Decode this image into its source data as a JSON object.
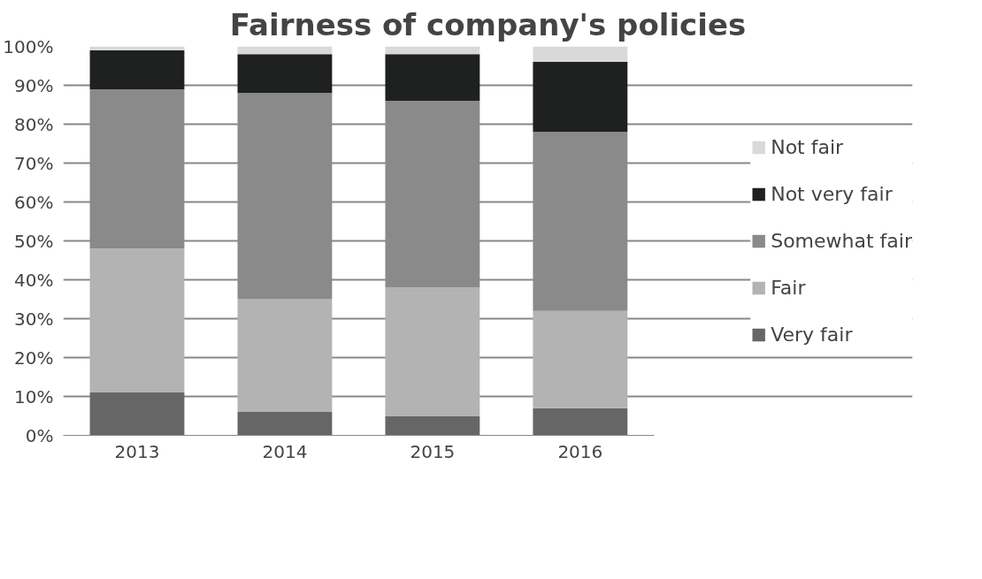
{
  "chart_data": {
    "type": "bar",
    "title": "Fairness of company's policies",
    "stacked": true,
    "categories": [
      "2013",
      "2014",
      "2015",
      "2016"
    ],
    "series": [
      {
        "name": "Very fair",
        "color": "#666666",
        "values": [
          11,
          6,
          5,
          7
        ]
      },
      {
        "name": "Fair",
        "color": "#b3b3b3",
        "values": [
          37,
          29,
          33,
          25
        ]
      },
      {
        "name": "Somewhat fair",
        "color": "#8a8a8a",
        "values": [
          41,
          53,
          48,
          46
        ]
      },
      {
        "name": "Not very fair",
        "color": "#1f2020",
        "values": [
          10,
          10,
          12,
          18
        ]
      },
      {
        "name": "Not fair",
        "color": "#d9d9d9",
        "values": [
          1,
          2,
          2,
          4
        ]
      }
    ],
    "ylim": [
      0,
      100
    ],
    "yticks": [
      {
        "value": 0,
        "label": "0%"
      },
      {
        "value": 10,
        "label": "10%"
      },
      {
        "value": 20,
        "label": "20%"
      },
      {
        "value": 30,
        "label": "30%"
      },
      {
        "value": 40,
        "label": "40%"
      },
      {
        "value": 50,
        "label": "50%"
      },
      {
        "value": 60,
        "label": "60%"
      },
      {
        "value": 70,
        "label": "70%"
      },
      {
        "value": 80,
        "label": "80%"
      },
      {
        "value": 90,
        "label": "90%"
      },
      {
        "value": 100,
        "label": "100%"
      }
    ],
    "grid": "y",
    "legend": "right"
  }
}
